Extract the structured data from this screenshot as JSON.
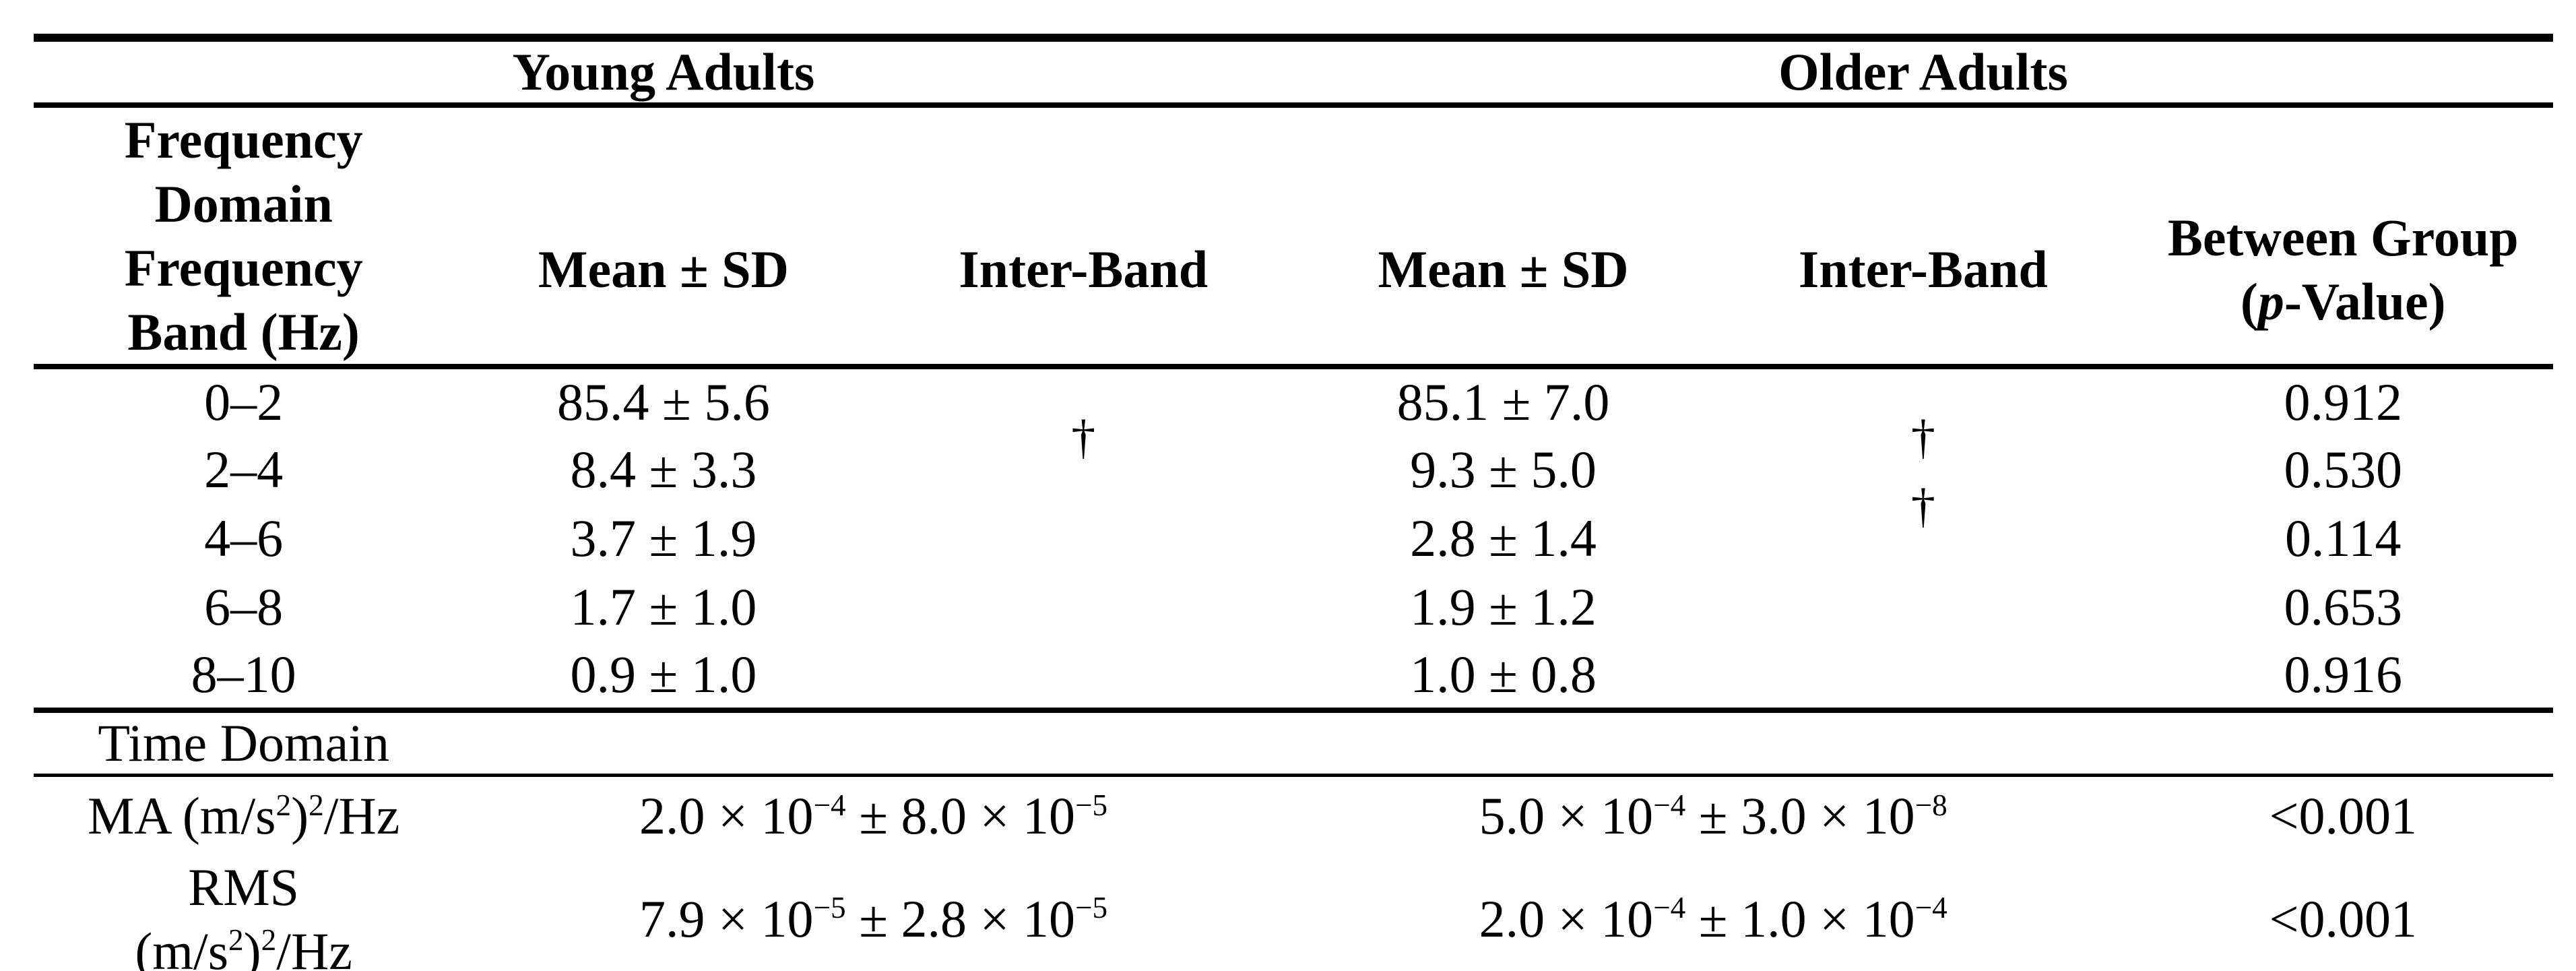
{
  "page": {
    "background": "#ffffff",
    "text_color": "#000000"
  },
  "table": {
    "group_headers": {
      "young": "Young Adults",
      "older": "Older Adults"
    },
    "column_headers": {
      "section": "Frequency Domain",
      "band_line1": "Frequency",
      "band_line2": "Band (Hz)",
      "young_mean": "Mean ± SD",
      "young_interband": "Inter-Band",
      "older_mean": "Mean ± SD",
      "older_interband": "Inter-Band",
      "between_group_line1": "Between Group",
      "between_group_line2": "(*p*-Value)"
    },
    "frequency_rows": [
      {
        "band": "0–2",
        "young_mean": "85.4 ± 5.6",
        "older_mean": "85.1 ± 7.0",
        "p_value": "0.912"
      },
      {
        "band": "2–4",
        "young_mean": "8.4 ± 3.3",
        "older_mean": "9.3 ± 5.0",
        "p_value": "0.530"
      },
      {
        "band": "4–6",
        "young_mean": "3.7 ± 1.9",
        "older_mean": "2.8 ± 1.4",
        "p_value": "0.114"
      },
      {
        "band": "6–8",
        "young_mean": "1.7 ± 1.0",
        "older_mean": "1.9 ± 1.2",
        "p_value": "0.653"
      },
      {
        "band": "8–10",
        "young_mean": "0.9 ± 1.0",
        "older_mean": "1.0 ± 0.8",
        "p_value": "0.916"
      }
    ],
    "young_interband_marker": "†",
    "older_interband_marker_1": "†",
    "older_interband_marker_2": "†",
    "time_domain_section": "Time Domain",
    "time_rows": [
      {
        "metric": "MA (m/s^2^)^2^/Hz",
        "young_value": "2.0 × 10^−4^ ± 8.0 × 10^−5^",
        "older_value": "5.0 × 10^−4^ ± 3.0 × 10^−8^",
        "p_value": "<0.001"
      },
      {
        "metric_line1": "RMS",
        "metric_line2": "(m/s^2^)^2^/Hz",
        "young_value": "7.9 × 10^−5^ ± 2.8 × 10^−5^",
        "older_value": "2.0 × 10^−4^ ± 1.0 × 10^−4^",
        "p_value": "<0.001"
      }
    ]
  }
}
